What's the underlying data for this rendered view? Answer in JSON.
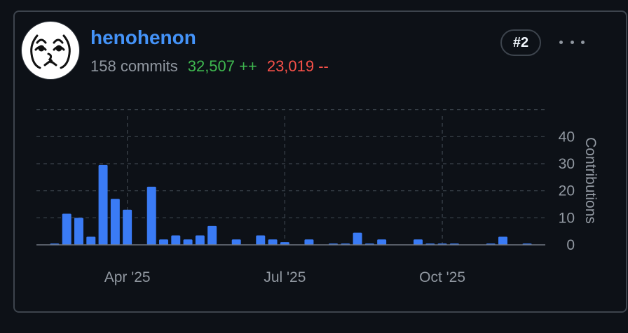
{
  "user": {
    "username": "henohenon",
    "commits": "158 commits",
    "additions": "32,507 ++",
    "deletions": "23,019 --",
    "rank": "#2",
    "more_icon": "kebab-horizontal-icon"
  },
  "colors": {
    "bar": "#3a7bf5",
    "username": "#4493f8",
    "additions": "#3fb950",
    "deletions": "#f85149"
  },
  "chart_data": {
    "type": "bar",
    "title": "",
    "xlabel": "",
    "ylabel": "Contributions",
    "ylim": [
      0,
      45
    ],
    "yticks": [
      0,
      10,
      20,
      30,
      40
    ],
    "grid": true,
    "y_axis_position": "right",
    "x_tick_labels": [
      "Apr '25",
      "Jul '25",
      "Oct '25"
    ],
    "x_tick_weeks": [
      7,
      20,
      33
    ],
    "series": [
      {
        "values": [
          0,
          0.5,
          11.5,
          10,
          3,
          29.5,
          17,
          13,
          0,
          21.5,
          2,
          3.5,
          2,
          3.5,
          7,
          0,
          2,
          0,
          3.5,
          2,
          1,
          0,
          2,
          0,
          0.5,
          0.5,
          4.5,
          0.5,
          2,
          0,
          0,
          2,
          0.5,
          0.5,
          0.5,
          0,
          0,
          0.5,
          3,
          0,
          0.5,
          0
        ]
      }
    ]
  }
}
